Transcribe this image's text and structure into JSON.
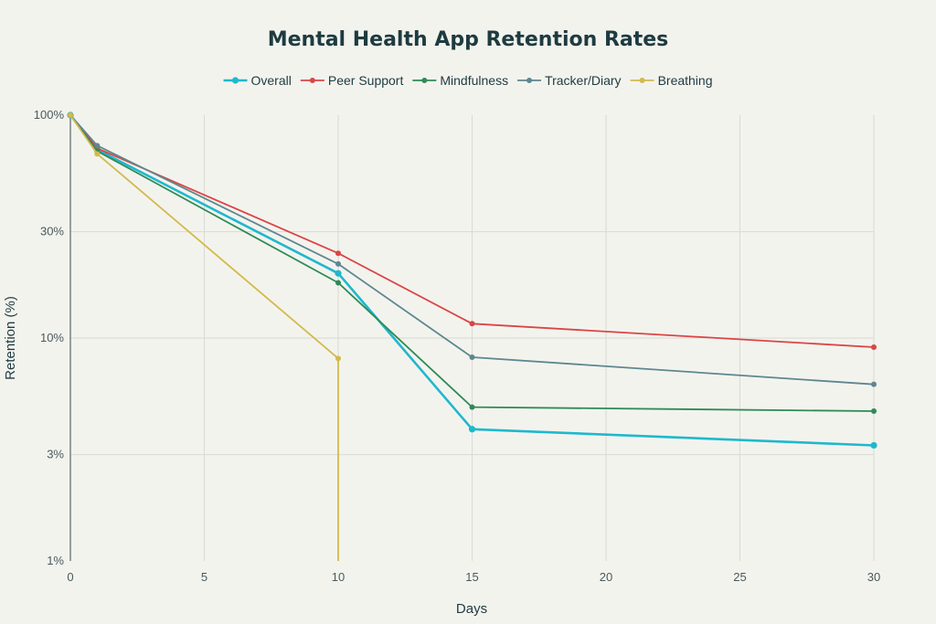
{
  "chart_data": {
    "type": "line",
    "title": "Mental Health App Retention Rates",
    "xlabel": "Days",
    "ylabel": "Retention (%)",
    "xlim": [
      0,
      30
    ],
    "ylim": [
      1,
      100
    ],
    "y_scale": "log",
    "grid": true,
    "legend_position": "top",
    "x_ticks": [
      0,
      5,
      10,
      15,
      20,
      25,
      30
    ],
    "y_ticks": [
      {
        "value": 1,
        "label": "1%"
      },
      {
        "value": 3,
        "label": "3%"
      },
      {
        "value": 10,
        "label": "10%"
      },
      {
        "value": 30,
        "label": "30%"
      },
      {
        "value": 100,
        "label": "100%"
      }
    ],
    "series": [
      {
        "name": "Overall",
        "color": "#1fb8cd",
        "x": [
          0,
          1,
          10,
          15,
          30
        ],
        "y": [
          100,
          70,
          19.5,
          3.9,
          3.3
        ]
      },
      {
        "name": "Peer Support",
        "color": "#db4545",
        "x": [
          0,
          1,
          10,
          15,
          30
        ],
        "y": [
          100,
          71,
          24,
          11.6,
          9.1
        ]
      },
      {
        "name": "Mindfulness",
        "color": "#2e8b57",
        "x": [
          0,
          1,
          10,
          15,
          30
        ],
        "y": [
          100,
          69,
          17.7,
          4.9,
          4.7
        ]
      },
      {
        "name": "Tracker/Diary",
        "color": "#5d878f",
        "x": [
          0,
          1,
          10,
          15,
          30
        ],
        "y": [
          100,
          73,
          21.5,
          8.2,
          6.2
        ]
      },
      {
        "name": "Breathing",
        "color": "#d2ba4c",
        "x": [
          0,
          1,
          10,
          10
        ],
        "y": [
          100,
          67,
          8.1,
          1
        ]
      }
    ]
  }
}
